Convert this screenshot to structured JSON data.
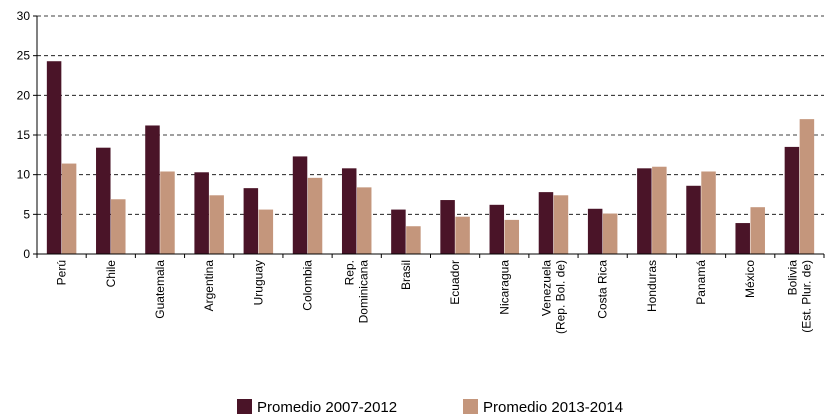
{
  "chart_data": {
    "type": "bar",
    "categories": [
      [
        "Perú"
      ],
      [
        "Chile"
      ],
      [
        "Guatemala"
      ],
      [
        "Argentina"
      ],
      [
        "Uruguay"
      ],
      [
        "Colombia"
      ],
      [
        "Rep.",
        "Dominicana"
      ],
      [
        "Brasil"
      ],
      [
        "Ecuador"
      ],
      [
        "Nicaragua"
      ],
      [
        "Venezuela",
        "(Rep. Bol. de)"
      ],
      [
        "Costa Rica"
      ],
      [
        "Honduras"
      ],
      [
        "Panamá"
      ],
      [
        "México"
      ],
      [
        "Bolivia",
        "(Est. Plur. de)"
      ]
    ],
    "series": [
      {
        "name": "Promedio 2007-2012",
        "color": "#4a1428",
        "values": [
          24.3,
          13.4,
          16.2,
          10.3,
          8.3,
          12.3,
          10.8,
          5.6,
          6.8,
          6.2,
          7.8,
          5.7,
          10.8,
          8.6,
          3.9,
          13.5
        ]
      },
      {
        "name": "Promedio 2013-2014",
        "color": "#c4967c",
        "values": [
          11.4,
          6.9,
          10.4,
          7.4,
          5.6,
          9.6,
          8.4,
          3.5,
          4.7,
          4.3,
          7.4,
          5.1,
          11.0,
          10.4,
          5.9,
          17.0
        ]
      }
    ],
    "y_ticks": [
      "0",
      "5",
      "10",
      "15",
      "20",
      "25",
      "30"
    ],
    "ylim": [
      0,
      30
    ],
    "grid": true,
    "legend_position": "bottom-center"
  }
}
